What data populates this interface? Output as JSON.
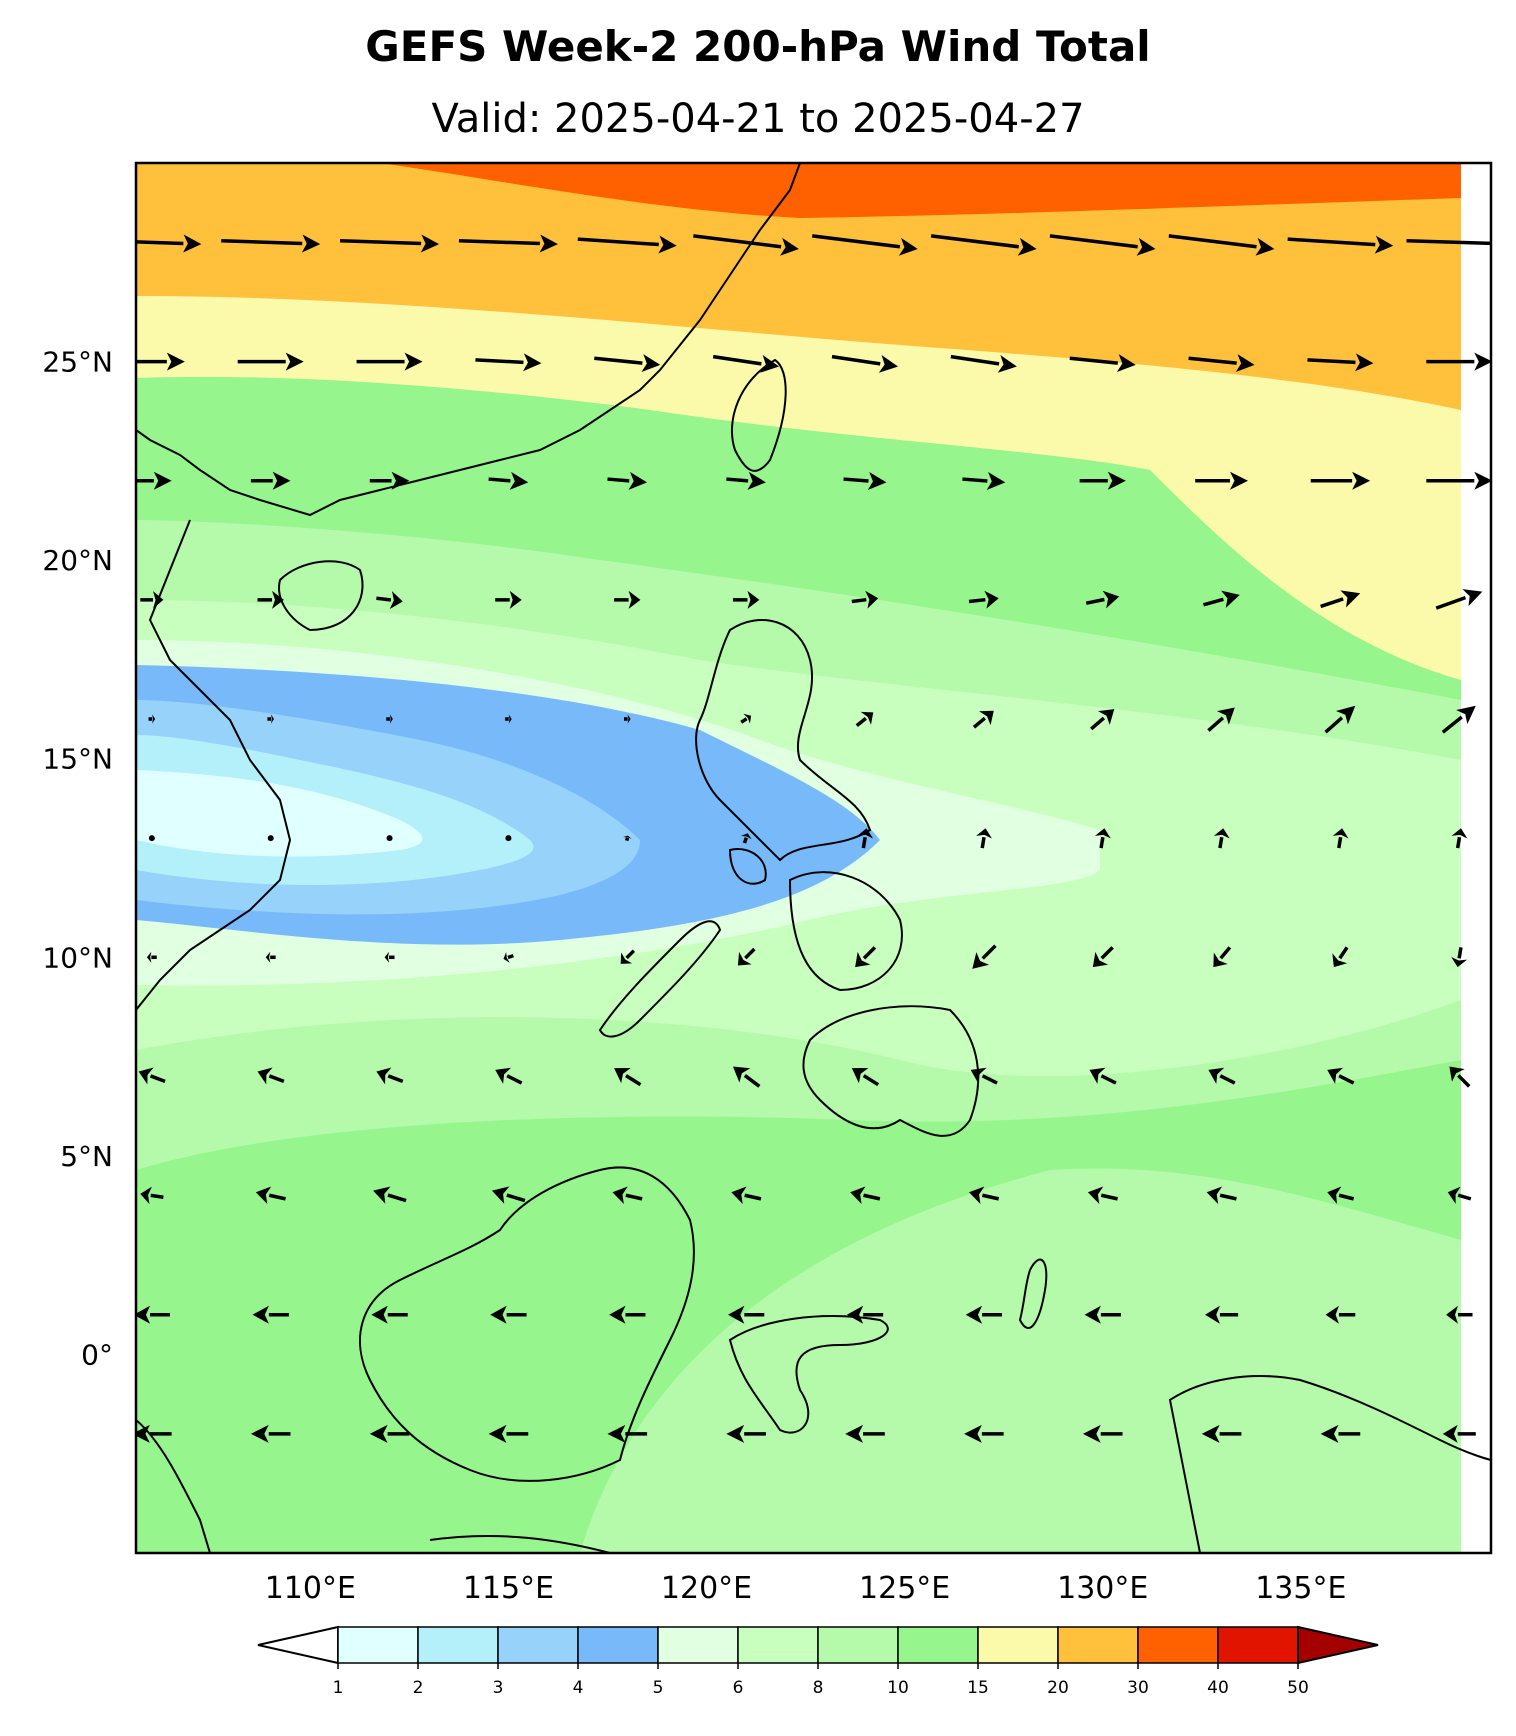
{
  "title": "GEFS Week-2 200-hPa Wind Total",
  "subtitle": "Valid: 2025-04-21 to 2025-04-27",
  "axes": {
    "lon_ticks": [
      "110°E",
      "115°E",
      "120°E",
      "125°E",
      "130°E",
      "135°E"
    ],
    "lat_ticks": [
      "25°N",
      "20°N",
      "15°N",
      "10°N",
      "5°N",
      "0°"
    ]
  },
  "colorbar": {
    "labels": [
      "1",
      "2",
      "3",
      "4",
      "5",
      "6",
      "8",
      "10",
      "15",
      "20",
      "30",
      "40",
      "50"
    ],
    "colors": [
      "#e0ffff",
      "#b4f0fa",
      "#96d2fa",
      "#78b9fa",
      "#e1ffe1",
      "#c8ffbe",
      "#b4faaa",
      "#96f58c",
      "#fafaaa",
      "#ffc03c",
      "#ff6000",
      "#e11400",
      "#a50000"
    ],
    "under_color": "#ffffff"
  },
  "map": {
    "lon_range": [
      105.6,
      139.8
    ],
    "lat_range": [
      -5,
      30
    ],
    "wind_field_colors": {
      "calm_core": "#e0ffff",
      "weak": "#96d2fa",
      "moderate": "#b4faaa",
      "green": "#96f58c",
      "yellow": "#fafaaa",
      "orange": "#ffc03c",
      "jet": "#ff6000"
    }
  },
  "chart_data": {
    "type": "heatmap",
    "title": "GEFS Week-2 200-hPa Wind Total",
    "subtitle": "Valid: 2025-04-21 to 2025-04-27",
    "x_range": [
      105.6,
      139.8
    ],
    "y_range": [
      -5,
      30
    ],
    "levels": [
      1,
      2,
      3,
      4,
      5,
      6,
      8,
      10,
      15,
      20,
      30,
      40,
      50
    ],
    "wind_vectors": {
      "lons": [
        106,
        109,
        112,
        115,
        118,
        121,
        124,
        127,
        130,
        133,
        136,
        139
      ],
      "lats": [
        28,
        25,
        22,
        19,
        16,
        13,
        10,
        7,
        4,
        1,
        -2
      ],
      "rows": [
        [
          [
            30,
            -1
          ],
          [
            30,
            -1
          ],
          [
            30,
            -1
          ],
          [
            30,
            -1
          ],
          [
            30,
            -2
          ],
          [
            32,
            -4
          ],
          [
            32,
            -4
          ],
          [
            32,
            -4
          ],
          [
            32,
            -4
          ],
          [
            32,
            -4
          ],
          [
            32,
            -2
          ],
          [
            32,
            -1
          ]
        ],
        [
          [
            20,
            0
          ],
          [
            20,
            0
          ],
          [
            20,
            0
          ],
          [
            20,
            -1
          ],
          [
            20,
            -2
          ],
          [
            20,
            -3
          ],
          [
            20,
            -3
          ],
          [
            20,
            -3
          ],
          [
            20,
            -2
          ],
          [
            20,
            -2
          ],
          [
            20,
            -1
          ],
          [
            20,
            0
          ]
        ],
        [
          [
            12,
            0
          ],
          [
            12,
            0
          ],
          [
            12,
            0
          ],
          [
            12,
            -1
          ],
          [
            12,
            -1
          ],
          [
            12,
            -1
          ],
          [
            13,
            -1
          ],
          [
            13,
            -1
          ],
          [
            14,
            0
          ],
          [
            16,
            0
          ],
          [
            18,
            0
          ],
          [
            20,
            0
          ]
        ],
        [
          [
            7,
            0
          ],
          [
            8,
            0
          ],
          [
            8,
            -1
          ],
          [
            8,
            0
          ],
          [
            8,
            0
          ],
          [
            8,
            0
          ],
          [
            8,
            1
          ],
          [
            9,
            1
          ],
          [
            10,
            2
          ],
          [
            11,
            3
          ],
          [
            12,
            4
          ],
          [
            14,
            5
          ]
        ],
        [
          [
            2,
            0
          ],
          [
            2,
            0
          ],
          [
            2,
            0
          ],
          [
            2,
            0
          ],
          [
            2,
            0
          ],
          [
            3,
            2
          ],
          [
            5,
            4
          ],
          [
            6,
            5
          ],
          [
            7,
            6
          ],
          [
            8,
            7
          ],
          [
            9,
            8
          ],
          [
            10,
            8
          ]
        ],
        [
          [
            0.3,
            0
          ],
          [
            0.3,
            0
          ],
          [
            0.3,
            0
          ],
          [
            0.3,
            0.5
          ],
          [
            0.3,
            1.5
          ],
          [
            1,
            3
          ],
          [
            1,
            6
          ],
          [
            1,
            6
          ],
          [
            1,
            6
          ],
          [
            1,
            6
          ],
          [
            1,
            6
          ],
          [
            1,
            6
          ]
        ],
        [
          [
            -3,
            0
          ],
          [
            -3,
            0
          ],
          [
            -3,
            0
          ],
          [
            -3,
            -1
          ],
          [
            -4,
            -4
          ],
          [
            -5,
            -5
          ],
          [
            -6,
            -6
          ],
          [
            -7,
            -7
          ],
          [
            -6,
            -6
          ],
          [
            -5,
            -6
          ],
          [
            -4,
            -6
          ],
          [
            -1,
            -6
          ]
        ],
        [
          [
            -8,
            3
          ],
          [
            -8,
            3
          ],
          [
            -8,
            3
          ],
          [
            -8,
            4
          ],
          [
            -8,
            5
          ],
          [
            -8,
            6
          ],
          [
            -8,
            5
          ],
          [
            -8,
            4
          ],
          [
            -8,
            4
          ],
          [
            -8,
            4
          ],
          [
            -8,
            4
          ],
          [
            -6,
            6
          ]
        ],
        [
          [
            -7,
            1
          ],
          [
            -9,
            2
          ],
          [
            -10,
            3
          ],
          [
            -10,
            3
          ],
          [
            -9,
            2
          ],
          [
            -9,
            2
          ],
          [
            -9,
            2
          ],
          [
            -9,
            2
          ],
          [
            -9,
            2
          ],
          [
            -9,
            2
          ],
          [
            -8,
            2
          ],
          [
            -7,
            2
          ]
        ],
        [
          [
            -11,
            0
          ],
          [
            -11,
            0
          ],
          [
            -11,
            0
          ],
          [
            -11,
            0
          ],
          [
            -11,
            0
          ],
          [
            -11,
            0
          ],
          [
            -11,
            0
          ],
          [
            -11,
            0
          ],
          [
            -11,
            0
          ],
          [
            -10,
            0
          ],
          [
            -9,
            0
          ],
          [
            -8,
            0
          ]
        ],
        [
          [
            -12,
            0
          ],
          [
            -12,
            0
          ],
          [
            -12,
            0
          ],
          [
            -12,
            0
          ],
          [
            -12,
            0
          ],
          [
            -12,
            0
          ],
          [
            -12,
            0
          ],
          [
            -12,
            0
          ],
          [
            -12,
            0
          ],
          [
            -12,
            0
          ],
          [
            -12,
            0
          ],
          [
            -10,
            0
          ]
        ]
      ]
    }
  }
}
